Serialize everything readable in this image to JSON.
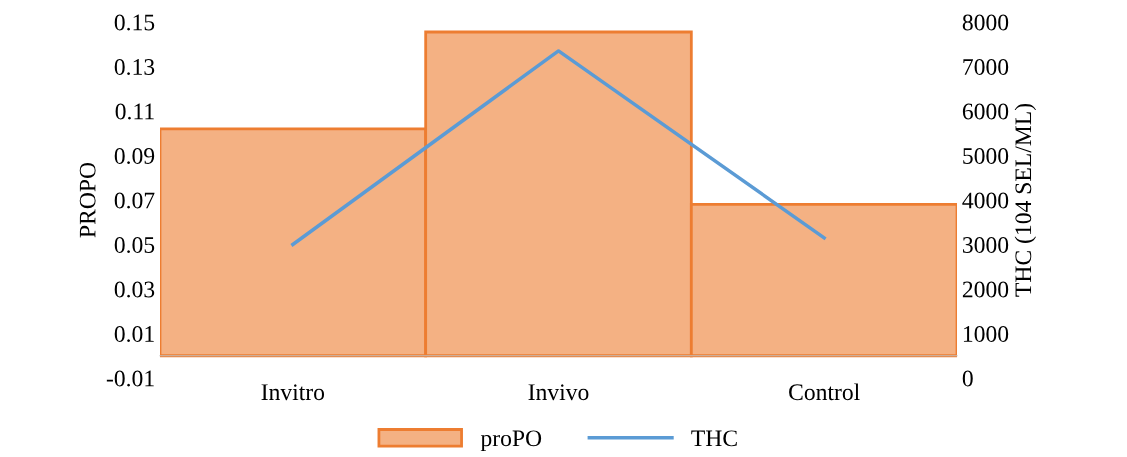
{
  "chart_data": {
    "type": "bar",
    "categories": [
      "Invitro",
      "Invivo",
      "Control"
    ],
    "series": [
      {
        "name": "proPO",
        "color": "#f4b183",
        "values": [
          0.102,
          0.1455,
          0.068
        ]
      },
      {
        "name": "THC",
        "type": "line",
        "axis": "y2",
        "color": "#5b9bd5",
        "values": [
          3000,
          7350,
          3150
        ]
      }
    ],
    "ylabel": "PROPO",
    "y2label": "THC (104 SEL/ML)",
    "ylim": [
      -0.01,
      0.15
    ],
    "yticks": [
      -0.01,
      0.01,
      0.03,
      0.05,
      0.07,
      0.09,
      0.11,
      0.13,
      0.15
    ],
    "y2lim": [
      0,
      8000
    ],
    "y2ticks": [
      0,
      1000,
      2000,
      3000,
      4000,
      5000,
      6000,
      7000,
      8000
    ],
    "legend": "bottom",
    "grid": false,
    "marker": "none"
  }
}
